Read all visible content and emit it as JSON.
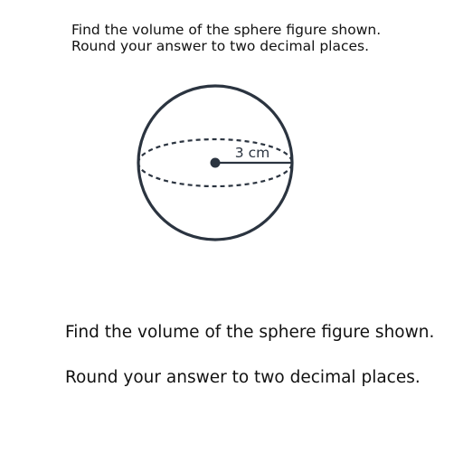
{
  "question": {
    "line1": "Find the volume of the sphere figure shown.",
    "line2": "Round your answer to two decimal places."
  },
  "figure": {
    "radius_label": "3 cm",
    "stroke_color": "#2b3440"
  },
  "body": {
    "line1": "Find the volume of the sphere figure shown.",
    "line2": "Round your answer to two decimal places."
  }
}
